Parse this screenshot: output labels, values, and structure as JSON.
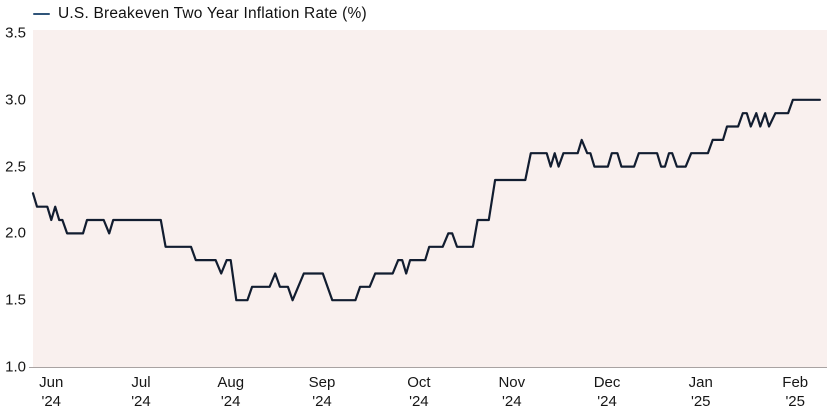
{
  "legend": {
    "label": "U.S. Breakeven Two Year Inflation Rate (%)"
  },
  "colors": {
    "line": "#121d30",
    "legend_swatch": "#2f5479",
    "plot_bg": "#f9f0ee",
    "axis": "#a9a3a2",
    "text": "#161616"
  },
  "chart_data": {
    "type": "line",
    "title": "U.S. Breakeven Two Year Inflation Rate (%)",
    "ylabel": "",
    "xlabel": "",
    "ylim": [
      1.0,
      3.5
    ],
    "grid": false,
    "legend_position": "top-left",
    "y_ticks": [
      3.5,
      3.0,
      2.5,
      2.0,
      1.5,
      1.0
    ],
    "x_ticks": [
      {
        "month": "Jun",
        "year": "'24",
        "pos_pct": 2.3
      },
      {
        "month": "Jul",
        "year": "'24",
        "pos_pct": 13.6
      },
      {
        "month": "Aug",
        "year": "'24",
        "pos_pct": 24.9
      },
      {
        "month": "Sep",
        "year": "'24",
        "pos_pct": 36.4
      },
      {
        "month": "Oct",
        "year": "'24",
        "pos_pct": 48.6
      },
      {
        "month": "Nov",
        "year": "'24",
        "pos_pct": 60.3
      },
      {
        "month": "Dec",
        "year": "'24",
        "pos_pct": 72.3
      },
      {
        "month": "Jan",
        "year": "'25",
        "pos_pct": 84.1
      },
      {
        "month": "Feb",
        "year": "'25",
        "pos_pct": 96.0
      }
    ],
    "series": [
      {
        "name": "U.S. Breakeven Two Year Inflation Rate (%)",
        "x_unit": "percent_of_timeline",
        "points": [
          [
            0.0,
            2.3
          ],
          [
            0.5,
            2.2
          ],
          [
            1.8,
            2.2
          ],
          [
            2.3,
            2.1
          ],
          [
            2.8,
            2.2
          ],
          [
            3.3,
            2.1
          ],
          [
            3.7,
            2.1
          ],
          [
            4.3,
            2.0
          ],
          [
            6.3,
            2.0
          ],
          [
            6.8,
            2.1
          ],
          [
            8.9,
            2.1
          ],
          [
            9.6,
            2.0
          ],
          [
            10.1,
            2.1
          ],
          [
            16.1,
            2.1
          ],
          [
            16.7,
            1.9
          ],
          [
            19.9,
            1.9
          ],
          [
            20.5,
            1.8
          ],
          [
            23.0,
            1.8
          ],
          [
            23.7,
            1.7
          ],
          [
            24.4,
            1.8
          ],
          [
            24.9,
            1.8
          ],
          [
            25.6,
            1.5
          ],
          [
            27.0,
            1.5
          ],
          [
            27.6,
            1.6
          ],
          [
            29.8,
            1.6
          ],
          [
            30.5,
            1.7
          ],
          [
            31.1,
            1.6
          ],
          [
            32.1,
            1.6
          ],
          [
            32.7,
            1.5
          ],
          [
            33.4,
            1.6
          ],
          [
            34.1,
            1.7
          ],
          [
            36.5,
            1.7
          ],
          [
            37.7,
            1.5
          ],
          [
            40.6,
            1.5
          ],
          [
            41.2,
            1.6
          ],
          [
            42.4,
            1.6
          ],
          [
            43.1,
            1.7
          ],
          [
            45.3,
            1.7
          ],
          [
            46.0,
            1.8
          ],
          [
            46.5,
            1.8
          ],
          [
            47.0,
            1.7
          ],
          [
            47.5,
            1.8
          ],
          [
            49.4,
            1.8
          ],
          [
            49.9,
            1.9
          ],
          [
            51.6,
            1.9
          ],
          [
            52.3,
            2.0
          ],
          [
            52.8,
            2.0
          ],
          [
            53.4,
            1.9
          ],
          [
            55.4,
            1.9
          ],
          [
            56.0,
            2.1
          ],
          [
            57.4,
            2.1
          ],
          [
            58.2,
            2.4
          ],
          [
            62.0,
            2.4
          ],
          [
            62.7,
            2.6
          ],
          [
            64.7,
            2.6
          ],
          [
            65.2,
            2.5
          ],
          [
            65.7,
            2.6
          ],
          [
            66.2,
            2.5
          ],
          [
            66.8,
            2.6
          ],
          [
            68.6,
            2.6
          ],
          [
            69.1,
            2.7
          ],
          [
            69.8,
            2.6
          ],
          [
            70.2,
            2.6
          ],
          [
            70.7,
            2.5
          ],
          [
            72.4,
            2.5
          ],
          [
            72.9,
            2.6
          ],
          [
            73.6,
            2.6
          ],
          [
            74.1,
            2.5
          ],
          [
            75.7,
            2.5
          ],
          [
            76.3,
            2.6
          ],
          [
            78.6,
            2.6
          ],
          [
            79.1,
            2.5
          ],
          [
            79.6,
            2.5
          ],
          [
            80.1,
            2.6
          ],
          [
            80.5,
            2.6
          ],
          [
            81.1,
            2.5
          ],
          [
            82.2,
            2.5
          ],
          [
            82.9,
            2.6
          ],
          [
            85.0,
            2.6
          ],
          [
            85.6,
            2.7
          ],
          [
            86.9,
            2.7
          ],
          [
            87.4,
            2.8
          ],
          [
            88.8,
            2.8
          ],
          [
            89.4,
            2.9
          ],
          [
            89.9,
            2.9
          ],
          [
            90.4,
            2.8
          ],
          [
            91.1,
            2.9
          ],
          [
            91.6,
            2.8
          ],
          [
            92.2,
            2.9
          ],
          [
            92.7,
            2.8
          ],
          [
            93.5,
            2.9
          ],
          [
            95.1,
            2.9
          ],
          [
            95.7,
            3.0
          ],
          [
            99.1,
            3.0
          ]
        ]
      }
    ]
  }
}
